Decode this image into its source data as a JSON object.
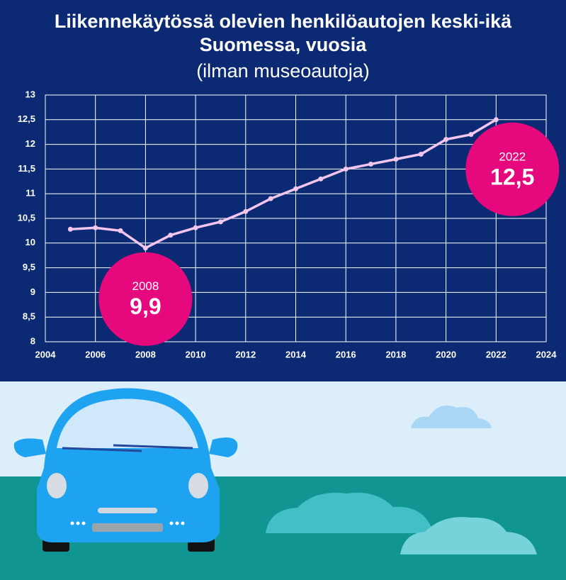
{
  "chart_data": {
    "type": "line",
    "title": "Liikennekäytössä olevien henkilöautojen keski-ikä Suomessa, vuosia",
    "subtitle": "(ilman museoautoja)",
    "x": [
      2005,
      2006,
      2007,
      2008,
      2009,
      2010,
      2011,
      2012,
      2013,
      2014,
      2015,
      2016,
      2017,
      2018,
      2019,
      2020,
      2021,
      2022
    ],
    "values": [
      10.28,
      10.31,
      10.25,
      9.9,
      10.16,
      10.31,
      10.43,
      10.64,
      10.9,
      11.1,
      11.3,
      11.5,
      11.6,
      11.7,
      11.8,
      12.1,
      12.2,
      12.5
    ],
    "value_labels": [
      null,
      null,
      null,
      "9,9",
      null,
      null,
      null,
      null,
      null,
      null,
      null,
      null,
      null,
      null,
      null,
      null,
      null,
      "12,5"
    ],
    "color": "#f3c6ee",
    "xlim": [
      2004,
      2024
    ],
    "xticks": [
      2004,
      2006,
      2008,
      2010,
      2012,
      2014,
      2016,
      2018,
      2020,
      2022,
      2024
    ],
    "ylim": [
      8,
      13
    ],
    "yticks": [
      8,
      {
        "value": 8.5,
        "label": "8,5"
      },
      9,
      {
        "value": 9.5,
        "label": "9,5"
      },
      10,
      {
        "value": 10.5,
        "label": "10,5"
      },
      11,
      {
        "value": 11.5,
        "label": "11,5"
      },
      12,
      {
        "value": 12.5,
        "label": "12,5"
      },
      13
    ],
    "grid": true,
    "highlight_color": "#e6097d"
  }
}
